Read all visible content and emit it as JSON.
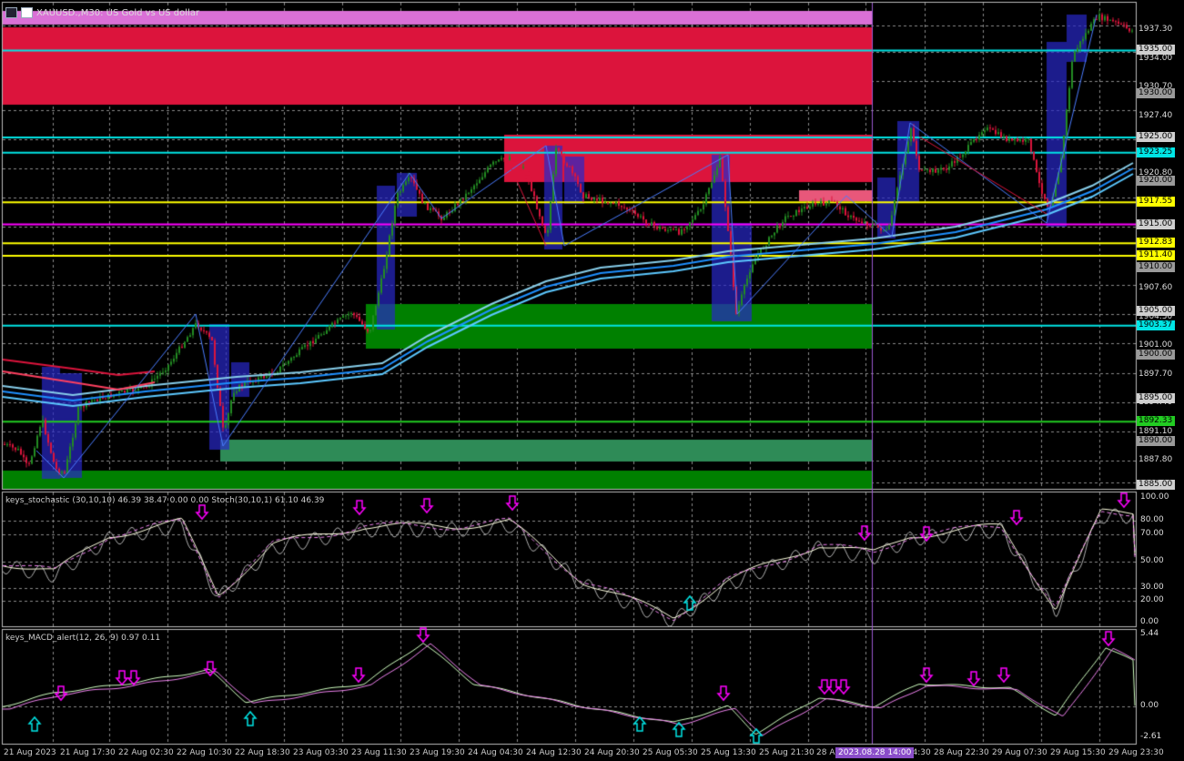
{
  "window": {
    "title": "XAUUSD.,M30: US Gold vs US dollar"
  },
  "price_axis": {
    "labels": [
      "1937.30",
      "1934.00",
      "1930.70",
      "1927.40",
      "1920.80",
      "1917.55",
      "1907.60",
      "1904.30",
      "1901.00",
      "1897.70",
      "1894.40",
      "1891.10",
      "1887.80",
      "1885.00"
    ],
    "badges": [
      {
        "text": "1935.00",
        "color": "#cfcfcf",
        "price": 1935.0
      },
      {
        "text": "1930.00",
        "color": "#9a9a9a",
        "price": 1930.0
      },
      {
        "text": "1925.00",
        "color": "#cfcfcf",
        "price": 1925.0
      },
      {
        "text": "1923.25",
        "color": "#00e5e5",
        "price": 1923.25
      },
      {
        "text": "1920.00",
        "color": "#9a9a9a",
        "price": 1920.0
      },
      {
        "text": "1917.55",
        "color": "#ffff00",
        "price": 1917.55
      },
      {
        "text": "1915.00",
        "color": "#cfcfcf",
        "price": 1915.0
      },
      {
        "text": "1912.83",
        "color": "#ffff00",
        "price": 1912.83
      },
      {
        "text": "1911.40",
        "color": "#ffff00",
        "price": 1911.4
      },
      {
        "text": "1910.00",
        "color": "#9a9a9a",
        "price": 1910.0
      },
      {
        "text": "1905.00",
        "color": "#cfcfcf",
        "price": 1905.0
      },
      {
        "text": "1903.37",
        "color": "#00e5e5",
        "price": 1903.37
      },
      {
        "text": "1900.00",
        "color": "#9a9a9a",
        "price": 1900.0
      },
      {
        "text": "1895.00",
        "color": "#cfcfcf",
        "price": 1895.0
      },
      {
        "text": "1892.33",
        "color": "#22cc22",
        "price": 1892.33
      },
      {
        "text": "1890.00",
        "color": "#9a9a9a",
        "price": 1890.0
      },
      {
        "text": "1885.00",
        "color": "#cfcfcf",
        "price": 1885.0
      }
    ]
  },
  "time_axis": {
    "labels": [
      "21 Aug 2023",
      "21 Aug 17:30",
      "22 Aug 02:30",
      "22 Aug 10:30",
      "22 Aug 18:30",
      "23 Aug 03:30",
      "23 Aug 11:30",
      "23 Aug 19:30",
      "24 Aug 04:30",
      "24 Aug 12:30",
      "24 Aug 20:30",
      "25 Aug 05:30",
      "25 Aug 13:30",
      "25 Aug 21:30",
      "28 A",
      "28 Aug 14:30",
      "28 Aug 22:30",
      "29 Aug 07:30",
      "29 Aug 15:30",
      "29 Aug 23:30"
    ],
    "cursor_badge": "2023.08.28 14:00"
  },
  "stochastic": {
    "header": "keys_stochastic (30,10,10) 46.39 38.47 0.00 0.00 Stoch(30,10,1) 61.10 46.39",
    "levels": [
      "100.00",
      "80.00",
      "70.00",
      "50.00",
      "30.00",
      "20.00",
      "0.00"
    ]
  },
  "macd": {
    "header": "keys_MACD_alert(12, 26, 9) 0.97 0.11",
    "levels": [
      "5.44",
      "0.00",
      "-2.61"
    ]
  },
  "colors": {
    "bull": "#228b22",
    "bear": "#dc143c",
    "supply": "#dc143c",
    "demand": "#008000",
    "accent_magenta": "#ff00ff",
    "accent_cyan": "#00e5e5",
    "accent_yellow": "#ffff00"
  }
}
